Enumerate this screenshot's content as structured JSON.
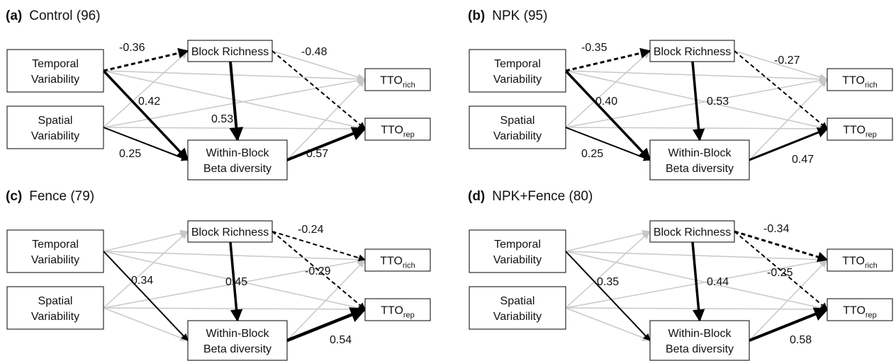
{
  "panels": [
    {
      "label": "(a)",
      "title": "Control (96)",
      "nodes": {
        "temporal": [
          "Temporal",
          "Variability"
        ],
        "spatial": [
          "Spatial",
          "Variability"
        ],
        "richness": [
          "Block Richness"
        ],
        "beta": [
          "Within-Block",
          "Beta diversity"
        ],
        "tto_rich": {
          "text": "TTO",
          "sub": "rich"
        },
        "tto_rep": {
          "text": "TTO",
          "sub": "rep"
        }
      },
      "coefficients": [
        "-0.36",
        "0.42",
        "0.53",
        "0.25",
        "-0.48",
        "0.57"
      ]
    },
    {
      "label": "(b)",
      "title": "NPK (95)",
      "nodes": {
        "temporal": [
          "Temporal",
          "Variability"
        ],
        "spatial": [
          "Spatial",
          "Variability"
        ],
        "richness": [
          "Block Richness"
        ],
        "beta": [
          "Within-Block",
          "Beta diversity"
        ],
        "tto_rich": {
          "text": "TTO",
          "sub": "rich"
        },
        "tto_rep": {
          "text": "TTO",
          "sub": "rep"
        }
      },
      "coefficients": [
        "-0.35",
        "0.40",
        "0.53",
        "0.25",
        "-0.27",
        "0.47"
      ]
    },
    {
      "label": "(c)",
      "title": "Fence (79)",
      "nodes": {
        "temporal": [
          "Temporal",
          "Variability"
        ],
        "spatial": [
          "Spatial",
          "Variability"
        ],
        "richness": [
          "Block Richness"
        ],
        "beta": [
          "Within-Block",
          "Beta diversity"
        ],
        "tto_rich": {
          "text": "TTO",
          "sub": "rich"
        },
        "tto_rep": {
          "text": "TTO",
          "sub": "rep"
        }
      },
      "coefficients": [
        "0.34",
        "0.45",
        "-0.24",
        "-0.29",
        "0.54"
      ]
    },
    {
      "label": "(d)",
      "title": "NPK+Fence (80)",
      "nodes": {
        "temporal": [
          "Temporal",
          "Variability"
        ],
        "spatial": [
          "Spatial",
          "Variability"
        ],
        "richness": [
          "Block Richness"
        ],
        "beta": [
          "Within-Block",
          "Beta diversity"
        ],
        "tto_rich": {
          "text": "TTO",
          "sub": "rich"
        },
        "tto_rep": {
          "text": "TTO",
          "sub": "rep"
        }
      },
      "coefficients": [
        "0.35",
        "0.44",
        "-0.34",
        "-0.25",
        "0.58"
      ]
    }
  ]
}
